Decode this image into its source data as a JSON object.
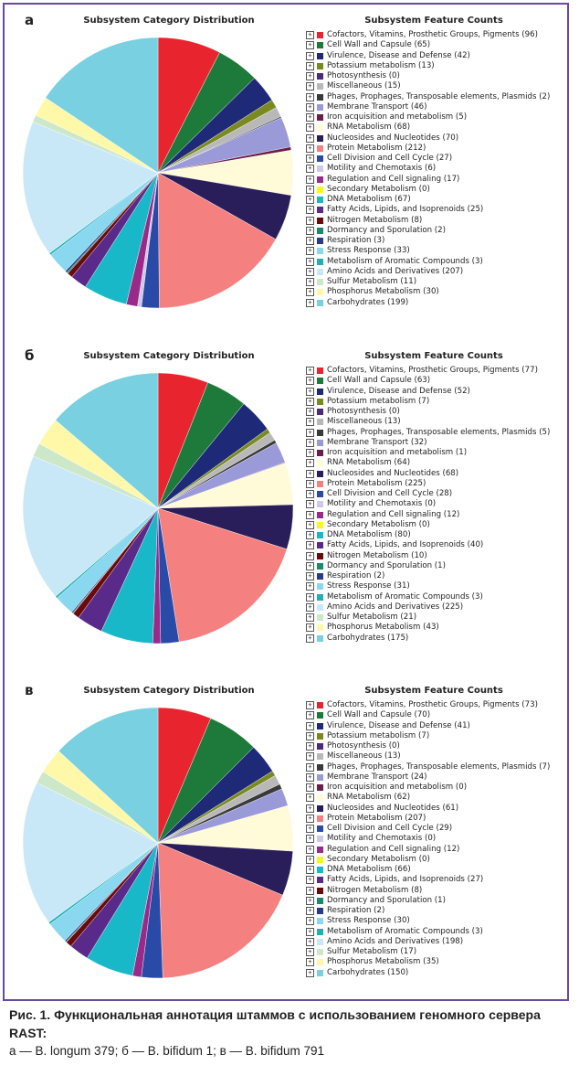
{
  "colors": [
    "#e8252e",
    "#1e7a3a",
    "#1e2a78",
    "#7a8a1e",
    "#4a2a7a",
    "#b8b8b8",
    "#3a3a3a",
    "#9a9ad8",
    "#6a1e4a",
    "#fffbd8",
    "#2a1e5a",
    "#f58080",
    "#2a4aa8",
    "#d0c8e8",
    "#9a2a8a",
    "#f8f818",
    "#18b8c8",
    "#5a2a8a",
    "#6a0a0a",
    "#1a8a6a",
    "#2a3a8a",
    "#8ad8f0",
    "#20b0b0",
    "#c8e8f8",
    "#cce8c8",
    "#fff8a8",
    "#78d0e0",
    "#f060a8"
  ],
  "panels": [
    {
      "letter": "а",
      "pie_title": "Subsystem Category Distribution",
      "legend_title": "Subsystem Feature Counts",
      "labels": [
        "Cofactors, Vitamins, Prosthetic Groups, Pigments (96)",
        "Cell Wall and Capsule (65)",
        "Virulence, Disease and Defense (42)",
        "Potassium metabolism (13)",
        "Photosynthesis (0)",
        "Miscellaneous (15)",
        "Phages, Prophages, Transposable elements, Plasmids (2)",
        "Membrane Transport (46)",
        "Iron acquisition and metabolism (5)",
        "RNA Metabolism (68)",
        "Nucleosides and Nucleotides (70)",
        "Protein Metabolism (212)",
        "Cell Division and Cell Cycle (27)",
        "Motility and Chemotaxis (6)",
        "Regulation and Cell signaling (17)",
        "Secondary Metabolism (0)",
        "DNA Metabolism (67)",
        "Fatty Acids, Lipids, and Isoprenoids (25)",
        "Nitrogen Metabolism (8)",
        "Dormancy and Sporulation (2)",
        "Respiration (3)",
        "Stress Response (33)",
        "Metabolism of Aromatic Compounds (3)",
        "Amino Acids and Derivatives (207)",
        "Sulfur Metabolism (11)",
        "Phosphorus Metabolism (30)",
        "Carbohydrates (199)"
      ]
    },
    {
      "letter": "б",
      "pie_title": "Subsystem Category Distribution",
      "legend_title": "Subsystem Feature Counts",
      "labels": [
        "Cofactors, Vitamins, Prosthetic Groups, Pigments (77)",
        "Cell Wall and Capsule (63)",
        "Virulence, Disease and Defense (52)",
        "Potassium metabolism (7)",
        "Photosynthesis (0)",
        "Miscellaneous (13)",
        "Phages, Prophages, Transposable elements, Plasmids (5)",
        "Membrane Transport (32)",
        "Iron acquisition and metabolism (1)",
        "RNA Metabolism (64)",
        "Nucleosides and Nucleotides (68)",
        "Protein Metabolism (225)",
        "Cell Division and Cell Cycle (28)",
        "Motility and Chemotaxis (0)",
        "Regulation and Cell signaling (12)",
        "Secondary Metabolism (0)",
        "DNA Metabolism (80)",
        "Fatty Acids, Lipids, and Isoprenoids (40)",
        "Nitrogen Metabolism (10)",
        "Dormancy and Sporulation (1)",
        "Respiration (2)",
        "Stress Response (31)",
        "Metabolism of Aromatic Compounds (3)",
        "Amino Acids and Derivatives (225)",
        "Sulfur Metabolism (21)",
        "Phosphorus Metabolism (43)",
        "Carbohydrates (175)"
      ]
    },
    {
      "letter": "в",
      "pie_title": "Subsystem Category Distribution",
      "legend_title": "Subsystem Feature Counts",
      "labels": [
        "Cofactors, Vitamins, Prosthetic Groups, Pigments (73)",
        "Cell Wall and Capsule (70)",
        "Virulence, Disease and Defense (41)",
        "Potassium metabolism (7)",
        "Photosynthesis (0)",
        "Miscellaneous (13)",
        "Phages, Prophages, Transposable elements, Plasmids (7)",
        "Membrane Transport (24)",
        "Iron acquisition and metabolism (0)",
        "RNA Metabolism (62)",
        "Nucleosides and Nucleotides (61)",
        "Protein Metabolism (207)",
        "Cell Division and Cell Cycle (29)",
        "Motility and Chemotaxis (0)",
        "Regulation and Cell signaling (12)",
        "Secondary Metabolism (0)",
        "DNA Metabolism (66)",
        "Fatty Acids, Lipids, and Isoprenoids (27)",
        "Nitrogen Metabolism (8)",
        "Dormancy and Sporulation (1)",
        "Respiration (2)",
        "Stress Response (30)",
        "Metabolism of Aromatic Compounds (3)",
        "Amino Acids and Derivatives (198)",
        "Sulfur Metabolism (17)",
        "Phosphorus Metabolism (35)",
        "Carbohydrates (150)"
      ]
    }
  ],
  "caption": {
    "line1": "Рис. 1. Функциональная аннотация штаммов с использованием геномного сервера RAST:",
    "line2": "а — B. longum 379; б — B. bifidum 1; в — B. bifidum 791"
  },
  "chart_data": [
    {
      "type": "pie",
      "title": "Subsystem Category Distribution",
      "legend_title": "Subsystem Feature Counts",
      "categories": [
        "Cofactors, Vitamins, Prosthetic Groups, Pigments",
        "Cell Wall and Capsule",
        "Virulence, Disease and Defense",
        "Potassium metabolism",
        "Photosynthesis",
        "Miscellaneous",
        "Phages, Prophages, Transposable elements, Plasmids",
        "Membrane Transport",
        "Iron acquisition and metabolism",
        "RNA Metabolism",
        "Nucleosides and Nucleotides",
        "Protein Metabolism",
        "Cell Division and Cell Cycle",
        "Motility and Chemotaxis",
        "Regulation and Cell signaling",
        "Secondary Metabolism",
        "DNA Metabolism",
        "Fatty Acids, Lipids, and Isoprenoids",
        "Nitrogen Metabolism",
        "Dormancy and Sporulation",
        "Respiration",
        "Stress Response",
        "Metabolism of Aromatic Compounds",
        "Amino Acids and Derivatives",
        "Sulfur Metabolism",
        "Phosphorus Metabolism",
        "Carbohydrates"
      ],
      "values": [
        96,
        65,
        42,
        13,
        0,
        15,
        2,
        46,
        5,
        68,
        70,
        212,
        27,
        6,
        17,
        0,
        67,
        25,
        8,
        2,
        3,
        33,
        3,
        207,
        11,
        30,
        199
      ],
      "legend_position": "right"
    },
    {
      "type": "pie",
      "title": "Subsystem Category Distribution",
      "legend_title": "Subsystem Feature Counts",
      "categories": [
        "Cofactors, Vitamins, Prosthetic Groups, Pigments",
        "Cell Wall and Capsule",
        "Virulence, Disease and Defense",
        "Potassium metabolism",
        "Photosynthesis",
        "Miscellaneous",
        "Phages, Prophages, Transposable elements, Plasmids",
        "Membrane Transport",
        "Iron acquisition and metabolism",
        "RNA Metabolism",
        "Nucleosides and Nucleotides",
        "Protein Metabolism",
        "Cell Division and Cell Cycle",
        "Motility and Chemotaxis",
        "Regulation and Cell signaling",
        "Secondary Metabolism",
        "DNA Metabolism",
        "Fatty Acids, Lipids, and Isoprenoids",
        "Nitrogen Metabolism",
        "Dormancy and Sporulation",
        "Respiration",
        "Stress Response",
        "Metabolism of Aromatic Compounds",
        "Amino Acids and Derivatives",
        "Sulfur Metabolism",
        "Phosphorus Metabolism",
        "Carbohydrates"
      ],
      "values": [
        77,
        63,
        52,
        7,
        0,
        13,
        5,
        32,
        1,
        64,
        68,
        225,
        28,
        0,
        12,
        0,
        80,
        40,
        10,
        1,
        2,
        31,
        3,
        225,
        21,
        43,
        175
      ],
      "legend_position": "right"
    },
    {
      "type": "pie",
      "title": "Subsystem Category Distribution",
      "legend_title": "Subsystem Feature Counts",
      "categories": [
        "Cofactors, Vitamins, Prosthetic Groups, Pigments",
        "Cell Wall and Capsule",
        "Virulence, Disease and Defense",
        "Potassium metabolism",
        "Photosynthesis",
        "Miscellaneous",
        "Phages, Prophages, Transposable elements, Plasmids",
        "Membrane Transport",
        "Iron acquisition and metabolism",
        "RNA Metabolism",
        "Nucleosides and Nucleotides",
        "Protein Metabolism",
        "Cell Division and Cell Cycle",
        "Motility and Chemotaxis",
        "Regulation and Cell signaling",
        "Secondary Metabolism",
        "DNA Metabolism",
        "Fatty Acids, Lipids, and Isoprenoids",
        "Nitrogen Metabolism",
        "Dormancy and Sporulation",
        "Respiration",
        "Stress Response",
        "Metabolism of Aromatic Compounds",
        "Amino Acids and Derivatives",
        "Sulfur Metabolism",
        "Phosphorus Metabolism",
        "Carbohydrates"
      ],
      "values": [
        73,
        70,
        41,
        7,
        0,
        13,
        7,
        24,
        0,
        62,
        61,
        207,
        29,
        0,
        12,
        0,
        66,
        27,
        8,
        1,
        2,
        30,
        3,
        198,
        17,
        35,
        150
      ],
      "legend_position": "right"
    }
  ]
}
